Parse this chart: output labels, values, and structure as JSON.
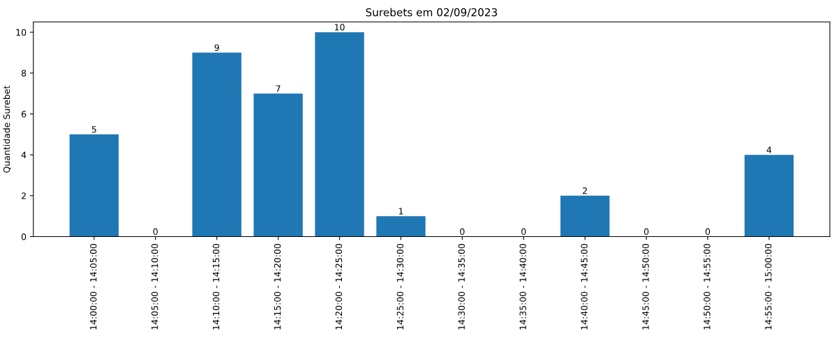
{
  "chart_data": {
    "type": "bar",
    "title": "Surebets em 02/09/2023",
    "ylabel": "Quantidade Surebet",
    "categories": [
      "14:00:00 - 14:05:00",
      "14:05:00 - 14:10:00",
      "14:10:00 - 14:15:00",
      "14:15:00 - 14:20:00",
      "14:20:00 - 14:25:00",
      "14:25:00 - 14:30:00",
      "14:30:00 - 14:35:00",
      "14:35:00 - 14:40:00",
      "14:40:00 - 14:45:00",
      "14:45:00 - 14:50:00",
      "14:50:00 - 14:55:00",
      "14:55:00 - 15:00:00"
    ],
    "values": [
      5,
      0,
      9,
      7,
      10,
      1,
      0,
      0,
      2,
      0,
      0,
      4
    ],
    "color": "#1f77b4",
    "ylim": [
      0,
      10.5
    ],
    "yticks": [
      0,
      2,
      4,
      6,
      8,
      10
    ],
    "data_labels": true,
    "grid": false,
    "legend": false
  }
}
